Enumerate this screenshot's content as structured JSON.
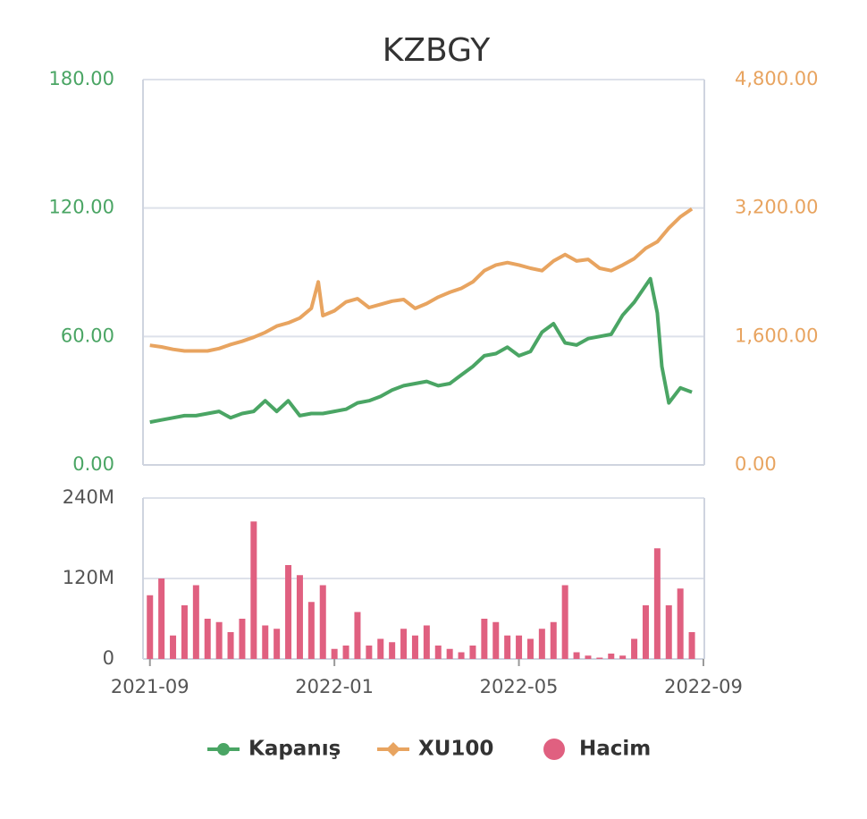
{
  "chart_data": [
    {
      "type": "line",
      "title": "KZBGY",
      "xlim": [
        -0.15,
        12.02
      ],
      "ylim": [
        0,
        180
      ],
      "yticks": [
        {
          "value": 0,
          "label": "0.00"
        },
        {
          "value": 60,
          "label": "60.00"
        },
        {
          "value": 120,
          "label": "120.00"
        },
        {
          "value": 180,
          "label": "180.00"
        }
      ],
      "y2lim": [
        0,
        4800
      ],
      "y2ticks": [
        {
          "value": 0,
          "label": "0.00"
        },
        {
          "value": 1600,
          "label": "1,600.00"
        },
        {
          "value": 3200,
          "label": "3,200.00"
        },
        {
          "value": 4800,
          "label": "4,800.00"
        }
      ],
      "grid": true,
      "series": [
        {
          "name": "Kapanış",
          "color": "#4aa564",
          "marker": "circle",
          "x": [
            0,
            0.25,
            0.5,
            0.75,
            1,
            1.25,
            1.5,
            1.75,
            2,
            2.25,
            2.5,
            2.75,
            3,
            3.25,
            3.5,
            3.75,
            4,
            4.25,
            4.5,
            4.75,
            5,
            5.25,
            5.5,
            5.75,
            6,
            6.25,
            6.5,
            6.75,
            7,
            7.25,
            7.5,
            7.75,
            8,
            8.25,
            8.5,
            8.75,
            9,
            9.25,
            9.5,
            9.75,
            10,
            10.25,
            10.5,
            10.85,
            11,
            11.1,
            11.25,
            11.5,
            11.75
          ],
          "values": [
            20,
            21,
            22,
            23,
            23,
            24,
            25,
            22,
            24,
            25,
            30,
            25,
            30,
            23,
            24,
            24,
            25,
            26,
            29,
            30,
            32,
            35,
            37,
            38,
            39,
            37,
            38,
            42,
            46,
            51,
            52,
            55,
            51,
            53,
            62,
            66,
            57,
            56,
            59,
            60,
            61,
            70,
            76,
            87,
            71,
            46,
            29,
            36,
            34
          ]
        },
        {
          "name": "XU100",
          "color": "#e8a460",
          "marker": "diamond",
          "axis": "y2",
          "x": [
            0,
            0.25,
            0.5,
            0.75,
            1,
            1.25,
            1.5,
            1.75,
            2,
            2.25,
            2.5,
            2.75,
            3,
            3.25,
            3.5,
            3.65,
            3.75,
            4,
            4.25,
            4.5,
            4.75,
            5,
            5.25,
            5.5,
            5.75,
            6,
            6.25,
            6.5,
            6.75,
            7,
            7.25,
            7.5,
            7.75,
            8,
            8.25,
            8.5,
            8.75,
            9,
            9.25,
            9.5,
            9.75,
            10,
            10.25,
            10.5,
            10.75,
            11,
            11.25,
            11.5,
            11.75
          ],
          "values": [
            1490,
            1470,
            1440,
            1420,
            1420,
            1420,
            1450,
            1500,
            1540,
            1590,
            1650,
            1730,
            1770,
            1830,
            1950,
            2280,
            1860,
            1920,
            2030,
            2070,
            1960,
            2000,
            2040,
            2060,
            1950,
            2010,
            2090,
            2150,
            2200,
            2280,
            2420,
            2490,
            2520,
            2490,
            2450,
            2420,
            2540,
            2620,
            2540,
            2560,
            2450,
            2420,
            2490,
            2570,
            2700,
            2780,
            2950,
            3090,
            3190
          ]
        }
      ]
    },
    {
      "type": "bar",
      "xlim": [
        -0.15,
        12.02
      ],
      "xticks": [
        {
          "value": 0,
          "label": "2021-09"
        },
        {
          "value": 4,
          "label": "2022-01"
        },
        {
          "value": 8,
          "label": "2022-05"
        },
        {
          "value": 12,
          "label": "2022-09"
        }
      ],
      "ylim": [
        0,
        240000000
      ],
      "yticks": [
        0,
        {
          "value": 120000000,
          "label": "120M"
        },
        {
          "value": 240000000,
          "label": "240M"
        }
      ],
      "grid": true,
      "series": [
        {
          "name": "Hacim",
          "color": "#e06080",
          "marker": "circle",
          "x": [
            0,
            0.25,
            0.5,
            0.75,
            1,
            1.25,
            1.5,
            1.75,
            2,
            2.25,
            2.5,
            2.75,
            3,
            3.25,
            3.5,
            3.75,
            4,
            4.25,
            4.5,
            4.75,
            5,
            5.25,
            5.5,
            5.75,
            6,
            6.25,
            6.5,
            6.75,
            7,
            7.25,
            7.5,
            7.75,
            8,
            8.25,
            8.5,
            8.75,
            9,
            9.25,
            9.5,
            9.75,
            10,
            10.25,
            10.5,
            10.75,
            11,
            11.25,
            11.5,
            11.75
          ],
          "values": [
            95000000,
            120000000,
            35000000,
            80000000,
            110000000,
            60000000,
            55000000,
            40000000,
            60000000,
            205000000,
            50000000,
            45000000,
            140000000,
            125000000,
            85000000,
            110000000,
            15000000,
            20000000,
            70000000,
            20000000,
            30000000,
            25000000,
            45000000,
            35000000,
            50000000,
            20000000,
            15000000,
            10000000,
            20000000,
            60000000,
            55000000,
            35000000,
            35000000,
            30000000,
            45000000,
            55000000,
            110000000,
            10000000,
            5000000,
            2000000,
            8000000,
            5000000,
            30000000,
            80000000,
            165000000,
            80000000,
            105000000,
            40000000
          ]
        }
      ]
    }
  ]
}
